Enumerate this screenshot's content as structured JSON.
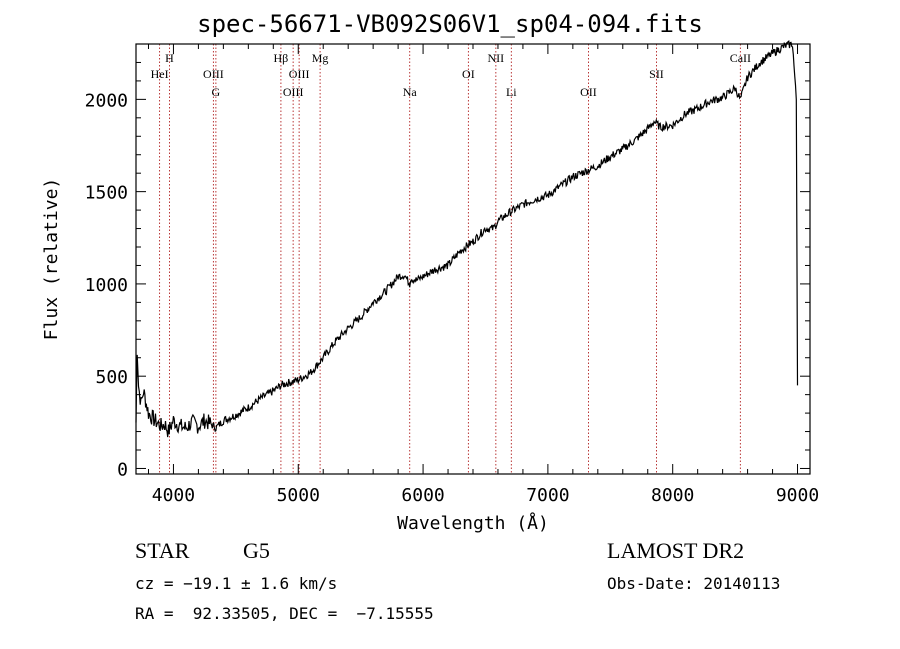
{
  "figure": {
    "title": "spec-56671-VB092S06V1_sp04-094.fits",
    "classification": {
      "class": "STAR",
      "subclass": "G5"
    },
    "redshift_text": "cz = −19.1 ± 1.6 km/s",
    "coords_text": "RA =  92.33505, DEC =  −7.15555",
    "survey": "LAMOST DR2",
    "obs_date_text": "Obs-Date: 20140113"
  },
  "chart_data": {
    "type": "line",
    "title": "spec-56671-VB092S06V1_sp04-094.fits",
    "xlabel": "Wavelength (Å)",
    "ylabel": "Flux (relative)",
    "xlim": [
      3700,
      9100
    ],
    "ylim": [
      -30,
      2300
    ],
    "xticks": [
      4000,
      5000,
      6000,
      7000,
      8000,
      9000
    ],
    "yticks": [
      0,
      500,
      1000,
      1500,
      2000
    ],
    "grid": false,
    "line_color": "#000000",
    "marker_line_color": "#b22222",
    "series": [
      {
        "x": [
          3700,
          3710,
          3720,
          3740,
          3760,
          3800,
          3850,
          3900,
          3930,
          3960,
          4000,
          4050,
          4100,
          4150,
          4200,
          4250,
          4300,
          4340,
          4400,
          4500,
          4600,
          4700,
          4800,
          4861,
          4900,
          5000,
          5100,
          5200,
          5300,
          5400,
          5500,
          5600,
          5700,
          5800,
          5850,
          5893,
          5900,
          5950,
          6000,
          6100,
          6200,
          6300,
          6400,
          6500,
          6563,
          6600,
          6700,
          6800,
          6900,
          7000,
          7100,
          7200,
          7300,
          7400,
          7500,
          7600,
          7700,
          7800,
          7850,
          7900,
          8000,
          8100,
          8200,
          8300,
          8400,
          8500,
          8542,
          8600,
          8700,
          8800,
          8900,
          8960,
          8990,
          9000
        ],
        "y": [
          250,
          650,
          450,
          350,
          420,
          300,
          260,
          230,
          240,
          200,
          260,
          230,
          220,
          250,
          230,
          260,
          240,
          220,
          260,
          290,
          330,
          380,
          420,
          450,
          460,
          480,
          520,
          600,
          690,
          760,
          820,
          900,
          960,
          1040,
          1050,
          1000,
          1030,
          1020,
          1040,
          1080,
          1100,
          1180,
          1230,
          1300,
          1300,
          1340,
          1390,
          1430,
          1460,
          1480,
          1530,
          1580,
          1610,
          1640,
          1690,
          1730,
          1780,
          1840,
          1880,
          1850,
          1860,
          1920,
          1950,
          1990,
          2010,
          2060,
          2000,
          2120,
          2200,
          2250,
          2290,
          2300,
          2000,
          450
        ]
      }
    ],
    "spectral_lines": [
      {
        "label": "HeI",
        "x": 3889,
        "row": 2
      },
      {
        "label": "H",
        "x": 3968,
        "row": 1
      },
      {
        "label": "OIII",
        "x": 4320,
        "row": 2
      },
      {
        "label": "G",
        "x": 4340,
        "row": 3
      },
      {
        "label": "Hβ",
        "x": 4861,
        "row": 1
      },
      {
        "label": "OIII",
        "x": 4959,
        "row": 3
      },
      {
        "label": "OIII",
        "x": 5007,
        "row": 2
      },
      {
        "label": "Mg",
        "x": 5175,
        "row": 1
      },
      {
        "label": "Na",
        "x": 5893,
        "row": 3
      },
      {
        "label": "OI",
        "x": 6363,
        "row": 2
      },
      {
        "label": "NII",
        "x": 6583,
        "row": 1
      },
      {
        "label": "Li",
        "x": 6707,
        "row": 3
      },
      {
        "label": "OII",
        "x": 7325,
        "row": 3
      },
      {
        "label": "SII",
        "x": 7870,
        "row": 2
      },
      {
        "label": "CaII",
        "x": 8542,
        "row": 1
      }
    ]
  }
}
